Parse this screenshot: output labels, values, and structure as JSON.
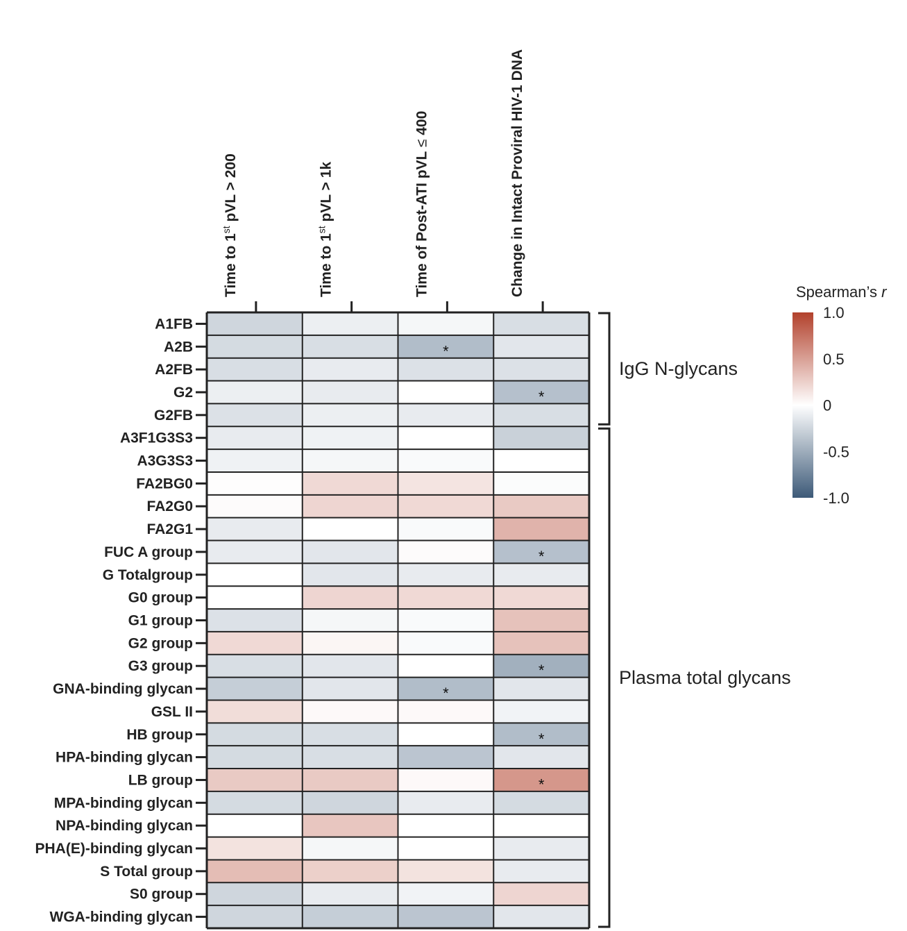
{
  "chart_data": {
    "type": "heatmap",
    "legend": {
      "title": "Spearman’s",
      "title_italic": "r",
      "ticks": [
        "1.0",
        "0.5",
        "0",
        "-0.5",
        "-1.0"
      ],
      "tick_values": [
        1.0,
        0.5,
        0,
        -0.5,
        -1.0
      ],
      "range": [
        -1.0,
        1.0
      ],
      "colors": {
        "low": "#3d5a78",
        "mid": "#ffffff",
        "high": "#b2412c"
      }
    },
    "columns": [
      {
        "pre": "Time to 1",
        "sup": "st",
        "post": " pVL > 200"
      },
      {
        "pre": "Time to 1",
        "sup": "st",
        "post": " pVL > 1k"
      },
      {
        "pre": "Time of Post-ATI pVL ",
        "sup": "",
        "post": "",
        "sym": "≤",
        "tail": " 400"
      },
      {
        "pre": "Change in Intact Proviral HIV-1 DNA",
        "sup": "",
        "post": ""
      }
    ],
    "groups": [
      {
        "label": "IgG N-glycans",
        "rows": [
          0,
          4
        ]
      },
      {
        "label": "Plasma total glycans",
        "rows": [
          5,
          26
        ]
      }
    ],
    "rows": [
      {
        "label": "A1FB",
        "values": [
          -0.25,
          -0.1,
          -0.05,
          -0.2
        ],
        "sig": [
          false,
          false,
          false,
          false
        ]
      },
      {
        "label": "A2B",
        "values": [
          -0.22,
          -0.2,
          -0.4,
          -0.15
        ],
        "sig": [
          false,
          false,
          true,
          false
        ]
      },
      {
        "label": "A2FB",
        "values": [
          -0.2,
          -0.12,
          -0.18,
          -0.18
        ],
        "sig": [
          false,
          false,
          false,
          false
        ]
      },
      {
        "label": "G2",
        "values": [
          -0.1,
          -0.12,
          0.0,
          -0.38
        ],
        "sig": [
          false,
          false,
          false,
          true
        ]
      },
      {
        "label": "G2FB",
        "values": [
          -0.18,
          -0.1,
          -0.12,
          -0.2
        ],
        "sig": [
          false,
          false,
          false,
          false
        ]
      },
      {
        "label": "A3F1G3S3",
        "values": [
          -0.12,
          -0.08,
          0.0,
          -0.28
        ],
        "sig": [
          false,
          false,
          false,
          false
        ]
      },
      {
        "label": "A3G3S3",
        "values": [
          -0.08,
          -0.05,
          -0.03,
          0.0
        ],
        "sig": [
          false,
          false,
          false,
          false
        ]
      },
      {
        "label": "FA2BG0",
        "values": [
          0.01,
          0.2,
          0.14,
          -0.02
        ],
        "sig": [
          false,
          false,
          false,
          false
        ]
      },
      {
        "label": "FA2G0",
        "values": [
          0.02,
          0.22,
          0.2,
          0.28
        ],
        "sig": [
          false,
          false,
          false,
          false
        ]
      },
      {
        "label": "FA2G1",
        "values": [
          -0.12,
          0.0,
          -0.03,
          0.4
        ],
        "sig": [
          false,
          false,
          false,
          false
        ]
      },
      {
        "label": "FUC A group",
        "values": [
          -0.12,
          -0.15,
          0.02,
          -0.38
        ],
        "sig": [
          false,
          false,
          false,
          true
        ]
      },
      {
        "label": "G Totalgroup",
        "values": [
          0.0,
          -0.15,
          -0.12,
          -0.12
        ],
        "sig": [
          false,
          false,
          false,
          false
        ]
      },
      {
        "label": "G0 group",
        "values": [
          0.0,
          0.22,
          0.2,
          0.2
        ],
        "sig": [
          false,
          false,
          false,
          false
        ]
      },
      {
        "label": "G1 group",
        "values": [
          -0.18,
          -0.05,
          -0.03,
          0.32
        ],
        "sig": [
          false,
          false,
          false,
          false
        ]
      },
      {
        "label": "G2 group",
        "values": [
          0.2,
          0.05,
          -0.03,
          0.32
        ],
        "sig": [
          false,
          false,
          false,
          false
        ]
      },
      {
        "label": "G3 group",
        "values": [
          -0.2,
          -0.15,
          0.0,
          -0.48
        ],
        "sig": [
          false,
          false,
          false,
          true
        ]
      },
      {
        "label": "GNA-binding glycan",
        "values": [
          -0.3,
          -0.15,
          -0.4,
          -0.15
        ],
        "sig": [
          false,
          false,
          true,
          false
        ]
      },
      {
        "label": "GSL II",
        "values": [
          0.18,
          0.03,
          0.03,
          -0.07
        ],
        "sig": [
          false,
          false,
          false,
          false
        ]
      },
      {
        "label": "HB group",
        "values": [
          -0.22,
          -0.2,
          0.0,
          -0.4
        ],
        "sig": [
          false,
          false,
          false,
          true
        ]
      },
      {
        "label": "HPA-binding glycan",
        "values": [
          -0.22,
          -0.2,
          -0.35,
          -0.15
        ],
        "sig": [
          false,
          false,
          false,
          false
        ]
      },
      {
        "label": "LB group",
        "values": [
          0.28,
          0.28,
          0.03,
          0.55
        ],
        "sig": [
          false,
          false,
          false,
          true
        ]
      },
      {
        "label": "MPA-binding glycan",
        "values": [
          -0.22,
          -0.25,
          -0.12,
          -0.22
        ],
        "sig": [
          false,
          false,
          false,
          false
        ]
      },
      {
        "label": "NPA-binding glycan",
        "values": [
          0.0,
          0.3,
          0.0,
          0.0
        ],
        "sig": [
          false,
          false,
          false,
          false
        ]
      },
      {
        "label": "PHA(E)-binding glycan",
        "values": [
          0.15,
          -0.05,
          0.0,
          -0.12
        ],
        "sig": [
          false,
          false,
          false,
          false
        ]
      },
      {
        "label": "S Total group",
        "values": [
          0.35,
          0.25,
          0.15,
          -0.12
        ],
        "sig": [
          false,
          false,
          false,
          false
        ]
      },
      {
        "label": "S0 group",
        "values": [
          -0.25,
          -0.12,
          -0.07,
          0.22
        ],
        "sig": [
          false,
          false,
          false,
          false
        ]
      },
      {
        "label": "WGA-binding glycan",
        "values": [
          -0.25,
          -0.3,
          -0.35,
          -0.15
        ],
        "sig": [
          false,
          false,
          false,
          false
        ]
      }
    ]
  }
}
